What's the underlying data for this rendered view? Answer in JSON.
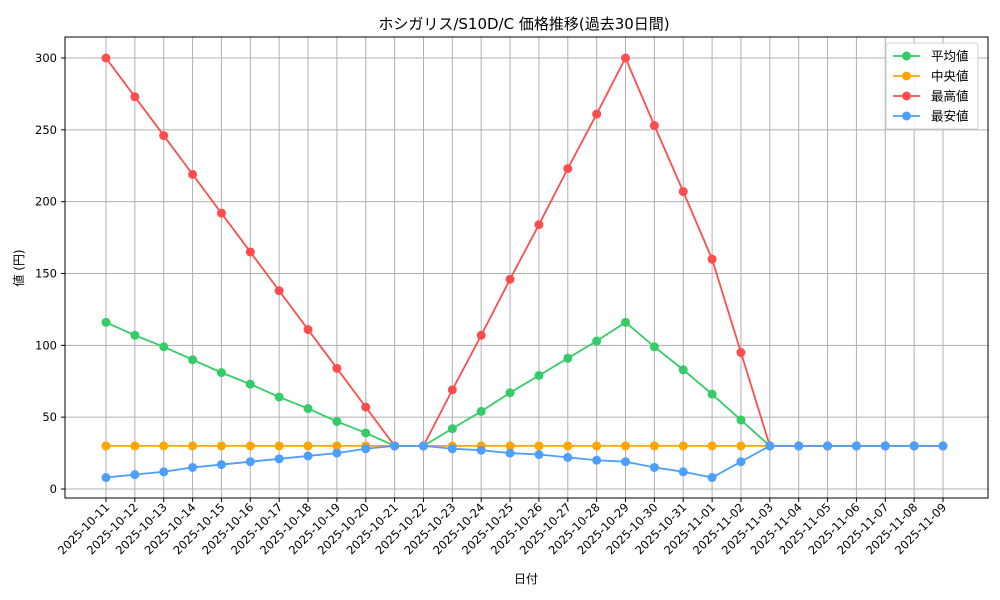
{
  "chart_data": {
    "type": "line",
    "title": "ホシガリス/S10D/C 価格推移(過去30日間)",
    "xlabel": "日付",
    "ylabel": "値 (円)",
    "ylim": [
      -8,
      315
    ],
    "yticks": [
      0,
      50,
      100,
      150,
      200,
      250,
      300
    ],
    "grid": true,
    "legend_position": "upper right",
    "x": [
      "2025-10-11",
      "2025-10-12",
      "2025-10-13",
      "2025-10-14",
      "2025-10-15",
      "2025-10-16",
      "2025-10-17",
      "2025-10-18",
      "2025-10-19",
      "2025-10-20",
      "2025-10-21",
      "2025-10-22",
      "2025-10-23",
      "2025-10-24",
      "2025-10-25",
      "2025-10-26",
      "2025-10-27",
      "2025-10-28",
      "2025-10-29",
      "2025-10-30",
      "2025-10-31",
      "2025-11-01",
      "2025-11-02",
      "2025-11-03",
      "2025-11-04",
      "2025-11-05",
      "2025-11-06",
      "2025-11-07",
      "2025-11-08",
      "2025-11-09"
    ],
    "series": [
      {
        "name": "平均値",
        "color": "#33cc66",
        "values": [
          116,
          107,
          99,
          90,
          81,
          73,
          64,
          56,
          47,
          39,
          30,
          30,
          42,
          54,
          67,
          79,
          91,
          103,
          116,
          99,
          83,
          66,
          48,
          30,
          30,
          30,
          30,
          30,
          30,
          30
        ]
      },
      {
        "name": "中央値",
        "color": "#ffa500",
        "values": [
          30,
          30,
          30,
          30,
          30,
          30,
          30,
          30,
          30,
          30,
          30,
          30,
          30,
          30,
          30,
          30,
          30,
          30,
          30,
          30,
          30,
          30,
          30,
          30,
          30,
          30,
          30,
          30,
          30,
          30
        ]
      },
      {
        "name": "最高値",
        "color": "#ff4d4d",
        "values": [
          300,
          273,
          246,
          219,
          192,
          165,
          138,
          111,
          84,
          57,
          30,
          30,
          69,
          107,
          146,
          184,
          223,
          261,
          300,
          253,
          207,
          160,
          95,
          30,
          30,
          30,
          30,
          30,
          30,
          30
        ]
      },
      {
        "name": "最安値",
        "color": "#4d9fff",
        "values": [
          8,
          10,
          12,
          15,
          17,
          19,
          21,
          23,
          25,
          28,
          30,
          30,
          28,
          27,
          25,
          24,
          22,
          20,
          19,
          15,
          12,
          8,
          19,
          30,
          30,
          30,
          30,
          30,
          30,
          30
        ]
      }
    ]
  }
}
